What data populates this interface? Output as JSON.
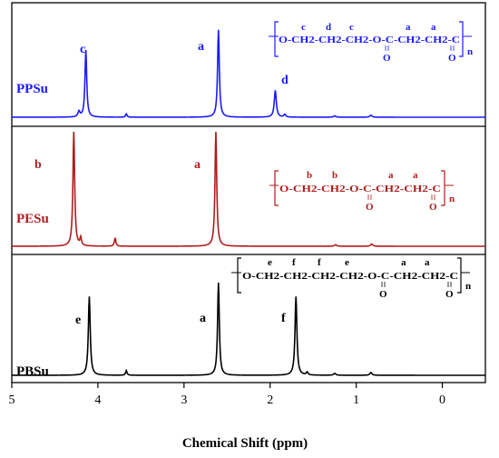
{
  "chart_data": {
    "type": "line",
    "title": "",
    "xlabel": "Chemical Shift (ppm)",
    "ylabel": "",
    "xlim": [
      5,
      -0.5
    ],
    "x_reversed": true,
    "xticks": [
      5,
      4,
      3,
      2,
      1,
      0
    ],
    "grid": false,
    "legend": "none",
    "series": [
      {
        "name": "PPSu",
        "color": "#1a1aff",
        "peaks": [
          {
            "x": 4.22,
            "h": 0.08,
            "w": 0.014
          },
          {
            "x": 4.14,
            "h": 1.0,
            "w": 0.012,
            "label": "c"
          },
          {
            "x": 3.67,
            "h": 0.05,
            "w": 0.01
          },
          {
            "x": 2.6,
            "h": 1.3,
            "w": 0.012,
            "label": "a"
          },
          {
            "x": 1.94,
            "h": 0.4,
            "w": 0.014,
            "label": "d"
          },
          {
            "x": 1.83,
            "h": 0.04,
            "w": 0.012
          },
          {
            "x": 1.25,
            "h": 0.02,
            "w": 0.015
          },
          {
            "x": 0.83,
            "h": 0.03,
            "w": 0.015
          }
        ],
        "structure": {
          "letters": [
            "c",
            "d",
            "c",
            "a",
            "a"
          ],
          "backbone": "O-CH2-CH2-CH2-O-C-CH2-CH2-C",
          "carbonyl": "O",
          "repeat": "n"
        }
      },
      {
        "name": "PESu",
        "color": "#b01c1c",
        "peaks": [
          {
            "x": 4.28,
            "h": 1.5,
            "w": 0.012,
            "label": "b"
          },
          {
            "x": 4.2,
            "h": 0.1,
            "w": 0.01
          },
          {
            "x": 3.8,
            "h": 0.11,
            "w": 0.01
          },
          {
            "x": 2.63,
            "h": 1.5,
            "w": 0.012,
            "label": "a"
          },
          {
            "x": 1.24,
            "h": 0.02,
            "w": 0.015
          },
          {
            "x": 0.82,
            "h": 0.03,
            "w": 0.015
          }
        ],
        "structure": {
          "letters": [
            "b",
            "b",
            "a",
            "a"
          ],
          "backbone": "O-CH2-CH2-O-C-CH2-CH2-C",
          "carbonyl": "O",
          "repeat": "n"
        }
      },
      {
        "name": "PBSu",
        "color": "#000000",
        "peaks": [
          {
            "x": 4.1,
            "h": 0.85,
            "w": 0.013,
            "label": "e"
          },
          {
            "x": 3.67,
            "h": 0.05,
            "w": 0.01
          },
          {
            "x": 2.6,
            "h": 1.0,
            "w": 0.012,
            "label": "a"
          },
          {
            "x": 1.7,
            "h": 0.85,
            "w": 0.013,
            "label": "f"
          },
          {
            "x": 1.57,
            "h": 0.03,
            "w": 0.012
          },
          {
            "x": 1.25,
            "h": 0.02,
            "w": 0.015
          },
          {
            "x": 0.83,
            "h": 0.03,
            "w": 0.015
          }
        ],
        "structure": {
          "letters": [
            "e",
            "f",
            "f",
            "e",
            "a",
            "a"
          ],
          "backbone": "O-CH2-CH2-CH2-CH2-O-C-CH2-CH2-C",
          "carbonyl": "O",
          "repeat": "n"
        }
      }
    ]
  }
}
